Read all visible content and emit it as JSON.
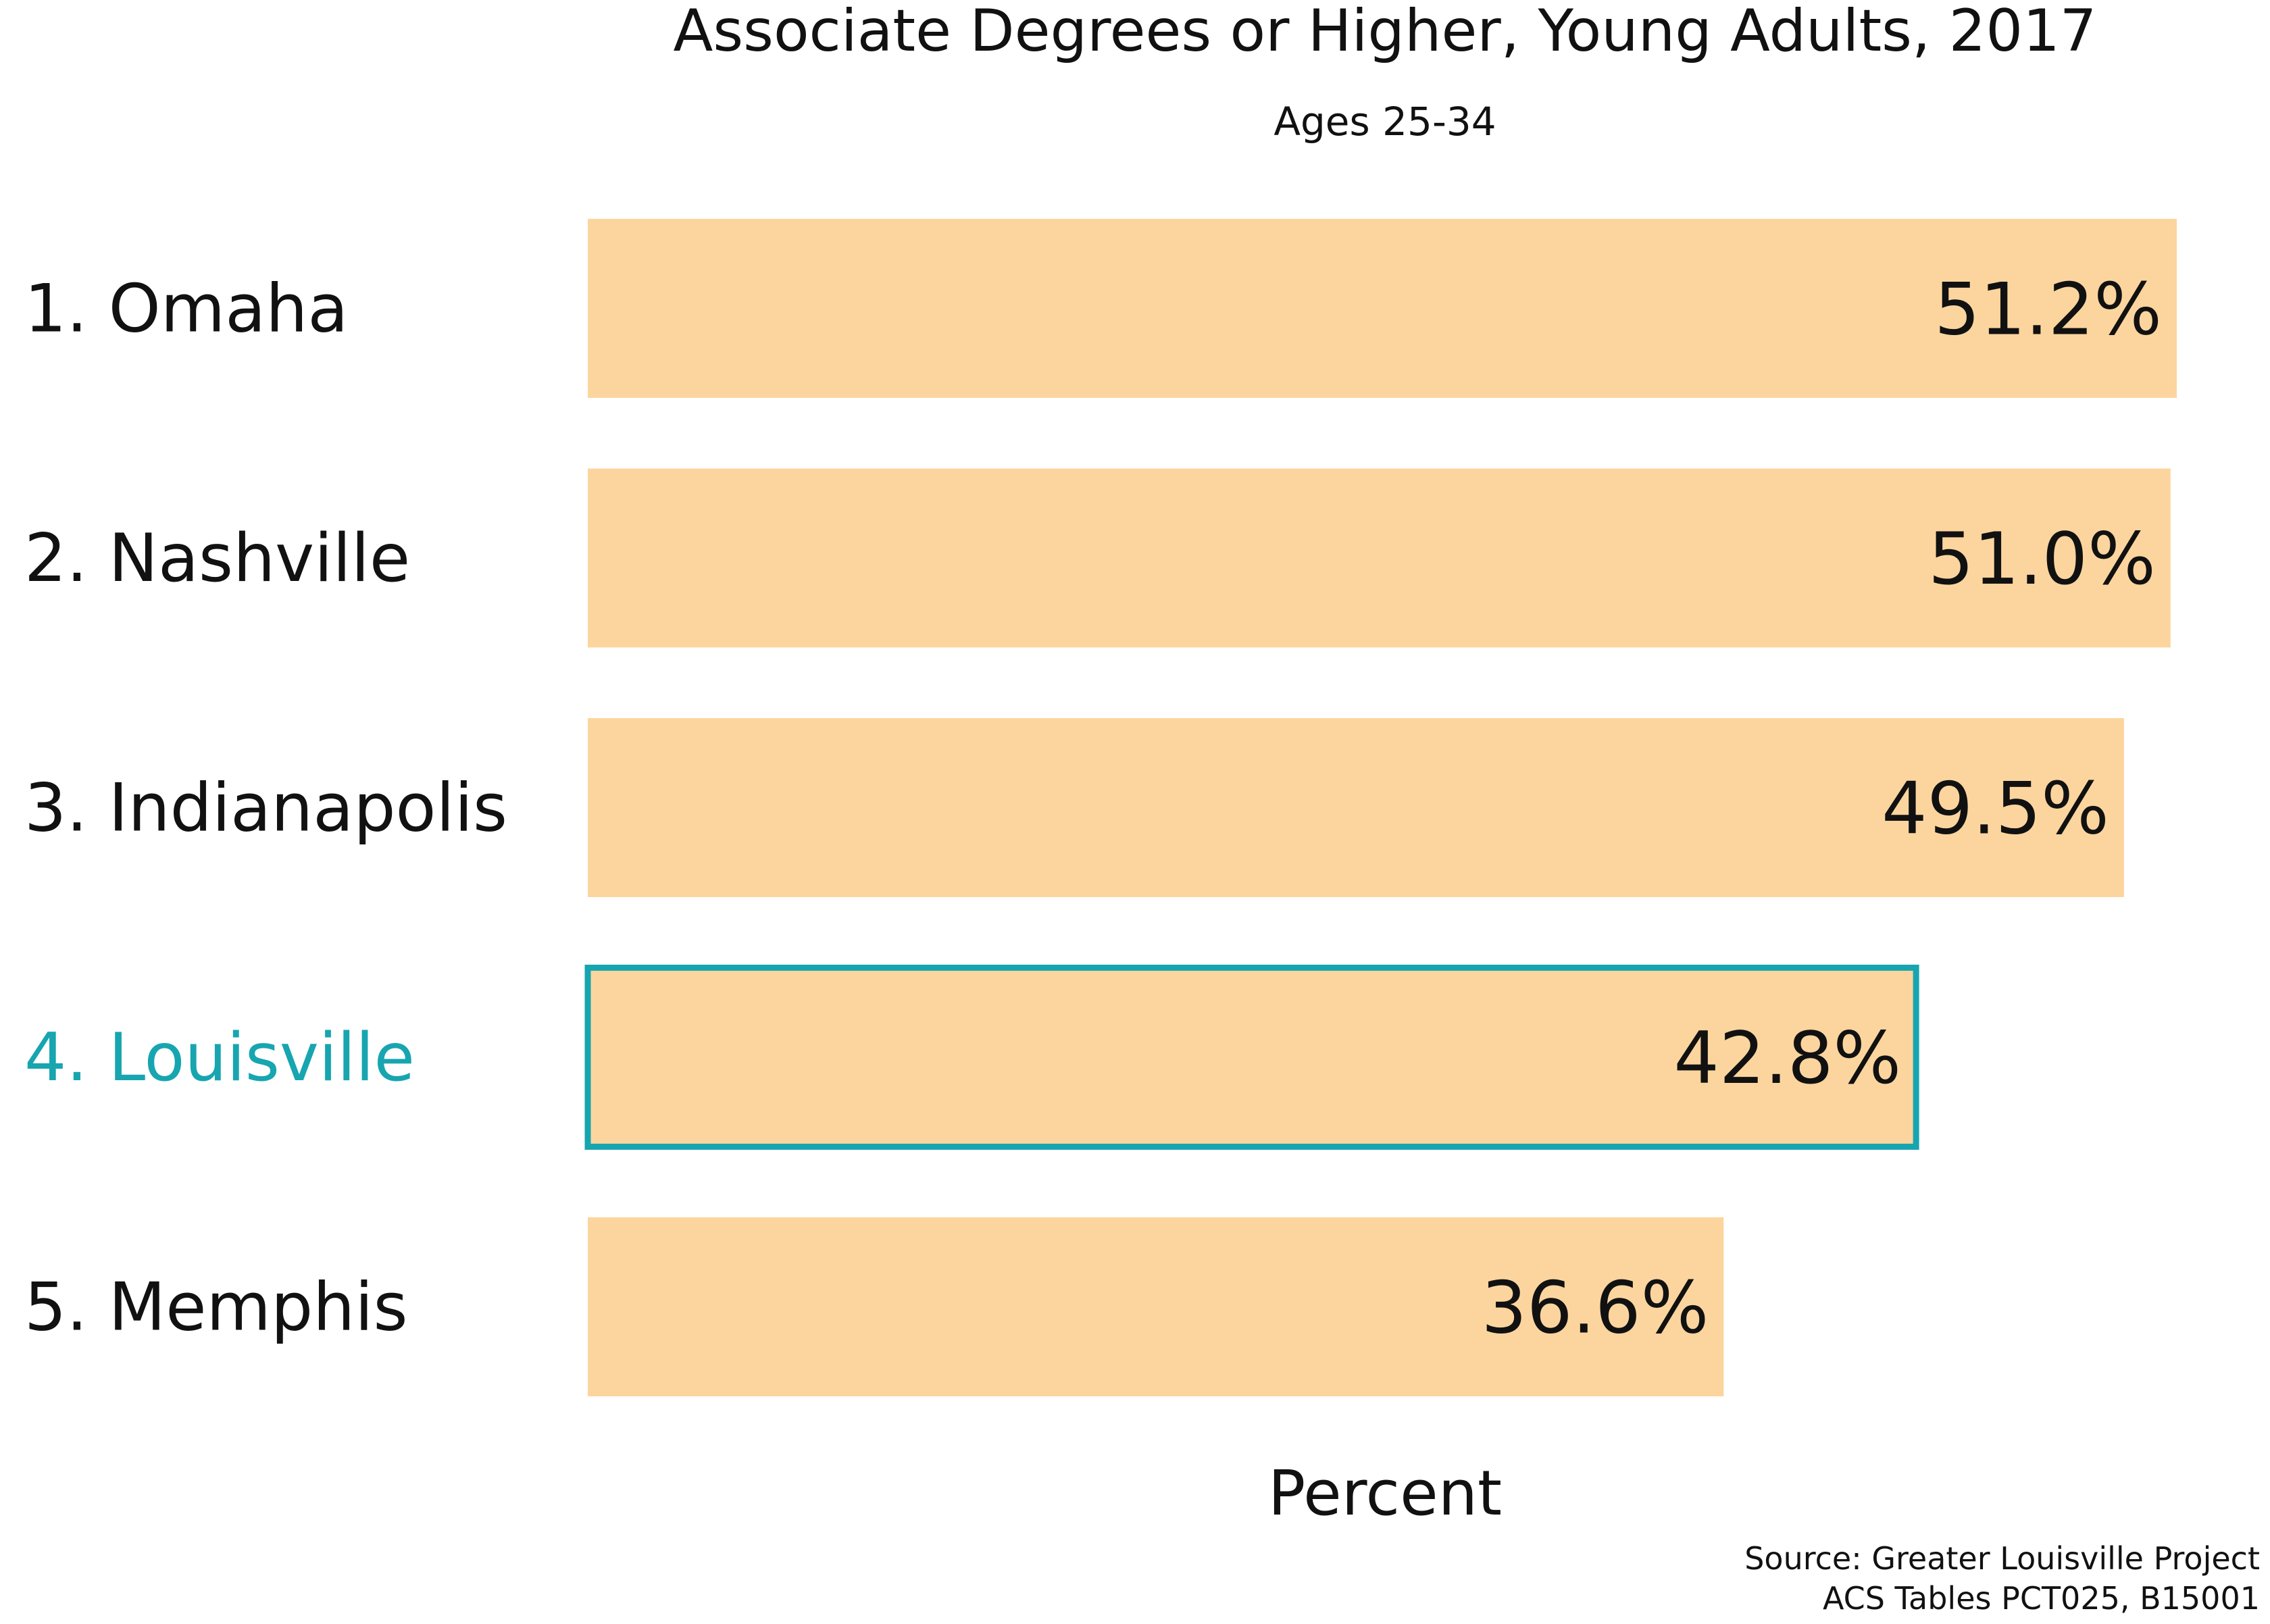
{
  "chart_data": {
    "type": "bar",
    "orientation": "horizontal",
    "title": "Associate Degrees or Higher, Young Adults, 2017",
    "subtitle": "Ages 25-34",
    "xlabel": "Percent",
    "ylabel": "",
    "categories": [
      "1. Omaha",
      "2. Nashville",
      "3. Indianapolis",
      "4. Louisville",
      "5. Memphis"
    ],
    "values": [
      51.2,
      51.0,
      49.5,
      42.8,
      36.6
    ],
    "data_labels": [
      "51.2%",
      "51.0%",
      "49.5%",
      "42.8%",
      "36.6%"
    ],
    "highlight_category": "4. Louisville",
    "xlim": [
      0,
      51.2
    ],
    "grid": false,
    "legend": "none",
    "source_lines": [
      "Source: Greater Louisville Project",
      "ACS Tables PCT025, B15001"
    ],
    "colors": {
      "bar_fill": "#fcd59e",
      "highlight_outline": "#17a5b0",
      "highlight_label": "#17a5b0",
      "text": "#111111"
    }
  }
}
